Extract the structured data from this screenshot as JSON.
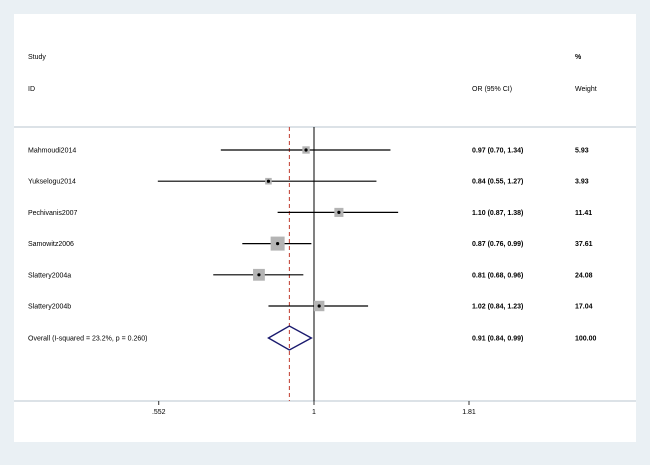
{
  "chart_data": {
    "type": "forest",
    "header": {
      "study_label_1": "Study",
      "study_label_2": "ID",
      "or_label": "OR (95% CI)",
      "weight_label_1": "%",
      "weight_label_2": "Weight"
    },
    "studies": [
      {
        "id": "Mahmoudi2014",
        "or": 0.97,
        "lower": 0.7,
        "upper": 1.34,
        "ci_text": "0.97 (0.70, 1.34)",
        "weight": 5.93,
        "weight_text": "5.93"
      },
      {
        "id": "Yukselogu2014",
        "or": 0.84,
        "lower": 0.55,
        "upper": 1.27,
        "ci_text": "0.84 (0.55, 1.27)",
        "weight": 3.93,
        "weight_text": "3.93"
      },
      {
        "id": "Pechivanis2007",
        "or": 1.1,
        "lower": 0.87,
        "upper": 1.38,
        "ci_text": "1.10 (0.87, 1.38)",
        "weight": 11.41,
        "weight_text": "11.41"
      },
      {
        "id": "Samowitz2006",
        "or": 0.87,
        "lower": 0.76,
        "upper": 0.99,
        "ci_text": "0.87 (0.76, 0.99)",
        "weight": 37.61,
        "weight_text": "37.61"
      },
      {
        "id": "Slattery2004a",
        "or": 0.81,
        "lower": 0.68,
        "upper": 0.96,
        "ci_text": "0.81 (0.68, 0.96)",
        "weight": 24.08,
        "weight_text": "24.08"
      },
      {
        "id": "Slattery2004b",
        "or": 1.02,
        "lower": 0.84,
        "upper": 1.23,
        "ci_text": "1.02 (0.84, 1.23)",
        "weight": 17.04,
        "weight_text": "17.04"
      }
    ],
    "overall": {
      "label": "Overall  (I-squared = 23.2%, p = 0.260)",
      "or": 0.91,
      "lower": 0.84,
      "upper": 0.99,
      "ci_text": "0.91 (0.84, 0.99)",
      "weight_text": "100.00"
    },
    "x_axis": {
      "scale": "log",
      "ticks": [
        0.552,
        1,
        1.81
      ],
      "tick_labels": [
        ".552",
        "1",
        "1.81"
      ],
      "null_line": 1
    },
    "colors": {
      "background": "#eaf0f4",
      "plot_area": "#ffffff",
      "ci_line": "#000000",
      "weight_box": "#b4b4b4",
      "diamond": "#1a1a6e",
      "overall_line": "#c0392b",
      "separator": "#b9c6cf"
    }
  }
}
